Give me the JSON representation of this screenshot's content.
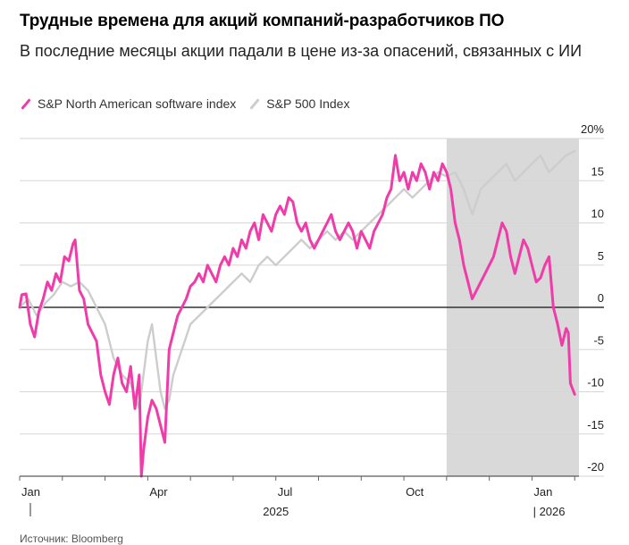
{
  "title": "Трудные времена для акций компаний-разработчиков ПО",
  "subtitle": "В последние месяцы акции падали в цене из-за опасений, связанных с ИИ",
  "source": "Источник: Bloomberg",
  "colors": {
    "software": "#ef3ca9",
    "sp500": "#cdcdcd",
    "shade": "#d9d9d9",
    "grid": "#d6d6d6",
    "zero": "#333333"
  },
  "chart_data": {
    "type": "line",
    "title": "Трудные времена для акций компаний-разработчиков ПО",
    "subtitle": "В последние месяцы акции падали в цене из-за опасений, связанных с ИИ",
    "xlabel": "",
    "ylabel": "%",
    "ylim": [
      -20,
      20
    ],
    "y_ticks": [
      "20%",
      "15",
      "10",
      "5",
      "0",
      "-5",
      "-10",
      "-15",
      "-20"
    ],
    "y_tick_values": [
      20,
      15,
      10,
      5,
      0,
      -5,
      -10,
      -15,
      -20
    ],
    "x_range": [
      0,
      13.1
    ],
    "x_ticks": [
      {
        "label": "Jan",
        "value": 0
      },
      {
        "label": "Apr",
        "value": 3
      },
      {
        "label": "Jul",
        "value": 6
      },
      {
        "label": "Oct",
        "value": 9
      },
      {
        "label": "Jan",
        "value": 12
      }
    ],
    "year_labels": [
      {
        "label": "2025",
        "value": 6
      },
      {
        "label": "| 2026",
        "value": 12.4
      }
    ],
    "shaded_region": {
      "from": 10,
      "to": 13.1
    },
    "legend": [
      "S&P North American software index",
      "S&P 500 Index"
    ],
    "series": [
      {
        "name": "S&P North American software index",
        "points": [
          [
            0,
            0
          ],
          [
            0.05,
            1.5
          ],
          [
            0.15,
            1.6
          ],
          [
            0.25,
            -2
          ],
          [
            0.35,
            -3.5
          ],
          [
            0.45,
            -0.5
          ],
          [
            0.55,
            1
          ],
          [
            0.65,
            3
          ],
          [
            0.75,
            2
          ],
          [
            0.85,
            4
          ],
          [
            0.95,
            3
          ],
          [
            1.05,
            6
          ],
          [
            1.15,
            5.5
          ],
          [
            1.25,
            7.5
          ],
          [
            1.3,
            8
          ],
          [
            1.4,
            2
          ],
          [
            1.5,
            1
          ],
          [
            1.6,
            -2
          ],
          [
            1.7,
            -3
          ],
          [
            1.8,
            -4
          ],
          [
            1.9,
            -8
          ],
          [
            2.0,
            -10
          ],
          [
            2.1,
            -11.5
          ],
          [
            2.2,
            -8
          ],
          [
            2.3,
            -6
          ],
          [
            2.4,
            -9
          ],
          [
            2.5,
            -10
          ],
          [
            2.6,
            -7
          ],
          [
            2.7,
            -12
          ],
          [
            2.8,
            -8
          ],
          [
            2.85,
            -20
          ],
          [
            2.9,
            -17
          ],
          [
            3.0,
            -13
          ],
          [
            3.1,
            -11
          ],
          [
            3.2,
            -12
          ],
          [
            3.3,
            -14
          ],
          [
            3.4,
            -16
          ],
          [
            3.5,
            -5
          ],
          [
            3.6,
            -3
          ],
          [
            3.7,
            -1
          ],
          [
            3.8,
            0
          ],
          [
            3.9,
            1
          ],
          [
            4.0,
            2.5
          ],
          [
            4.1,
            3
          ],
          [
            4.2,
            4
          ],
          [
            4.3,
            3
          ],
          [
            4.4,
            5
          ],
          [
            4.5,
            4
          ],
          [
            4.6,
            3
          ],
          [
            4.7,
            5
          ],
          [
            4.8,
            6
          ],
          [
            4.9,
            5
          ],
          [
            5.0,
            7
          ],
          [
            5.1,
            6
          ],
          [
            5.2,
            8
          ],
          [
            5.3,
            7
          ],
          [
            5.4,
            9
          ],
          [
            5.5,
            10
          ],
          [
            5.6,
            8
          ],
          [
            5.7,
            11
          ],
          [
            5.8,
            10
          ],
          [
            5.9,
            9
          ],
          [
            6.0,
            11
          ],
          [
            6.1,
            12
          ],
          [
            6.2,
            11
          ],
          [
            6.3,
            13
          ],
          [
            6.4,
            12.5
          ],
          [
            6.5,
            10
          ],
          [
            6.6,
            9
          ],
          [
            6.7,
            10
          ],
          [
            6.8,
            8
          ],
          [
            6.9,
            7
          ],
          [
            7.0,
            8
          ],
          [
            7.1,
            9
          ],
          [
            7.2,
            10
          ],
          [
            7.3,
            11
          ],
          [
            7.4,
            9
          ],
          [
            7.5,
            8
          ],
          [
            7.6,
            9
          ],
          [
            7.7,
            10
          ],
          [
            7.8,
            9
          ],
          [
            7.9,
            7
          ],
          [
            8.0,
            9
          ],
          [
            8.1,
            8
          ],
          [
            8.2,
            7
          ],
          [
            8.3,
            9
          ],
          [
            8.4,
            10
          ],
          [
            8.5,
            11
          ],
          [
            8.6,
            13
          ],
          [
            8.7,
            14
          ],
          [
            8.8,
            18
          ],
          [
            8.9,
            15
          ],
          [
            9.0,
            16
          ],
          [
            9.1,
            14
          ],
          [
            9.2,
            16
          ],
          [
            9.3,
            15
          ],
          [
            9.4,
            17
          ],
          [
            9.5,
            16
          ],
          [
            9.6,
            14
          ],
          [
            9.7,
            16
          ],
          [
            9.8,
            15
          ],
          [
            9.9,
            17
          ],
          [
            10.0,
            16
          ],
          [
            10.1,
            14
          ],
          [
            10.2,
            10
          ],
          [
            10.3,
            8
          ],
          [
            10.4,
            5
          ],
          [
            10.5,
            3
          ],
          [
            10.6,
            1
          ],
          [
            10.7,
            2
          ],
          [
            10.8,
            3
          ],
          [
            10.9,
            4
          ],
          [
            11.0,
            5
          ],
          [
            11.1,
            6
          ],
          [
            11.2,
            8
          ],
          [
            11.3,
            10
          ],
          [
            11.4,
            9
          ],
          [
            11.5,
            6
          ],
          [
            11.6,
            4
          ],
          [
            11.7,
            6
          ],
          [
            11.8,
            8
          ],
          [
            11.9,
            7
          ],
          [
            12.0,
            5
          ],
          [
            12.1,
            3
          ],
          [
            12.2,
            3.5
          ],
          [
            12.3,
            5
          ],
          [
            12.4,
            6
          ],
          [
            12.5,
            0
          ],
          [
            12.6,
            -2
          ],
          [
            12.7,
            -4.5
          ],
          [
            12.8,
            -2.5
          ],
          [
            12.85,
            -3
          ],
          [
            12.9,
            -9
          ],
          [
            13.0,
            -10.3
          ]
        ]
      },
      {
        "name": "S&P 500 Index",
        "points": [
          [
            0,
            0
          ],
          [
            0.2,
            1
          ],
          [
            0.4,
            -1
          ],
          [
            0.6,
            0.5
          ],
          [
            0.8,
            1.5
          ],
          [
            1.0,
            3
          ],
          [
            1.2,
            2.5
          ],
          [
            1.4,
            3
          ],
          [
            1.6,
            2
          ],
          [
            1.8,
            0
          ],
          [
            2.0,
            -2
          ],
          [
            2.2,
            -6
          ],
          [
            2.4,
            -8
          ],
          [
            2.6,
            -9
          ],
          [
            2.8,
            -12
          ],
          [
            3.0,
            -4
          ],
          [
            3.1,
            -2
          ],
          [
            3.2,
            -6
          ],
          [
            3.3,
            -10
          ],
          [
            3.4,
            -12
          ],
          [
            3.5,
            -11
          ],
          [
            3.6,
            -8
          ],
          [
            3.8,
            -5
          ],
          [
            4.0,
            -2
          ],
          [
            4.2,
            -1
          ],
          [
            4.4,
            0
          ],
          [
            4.6,
            1
          ],
          [
            4.8,
            2
          ],
          [
            5.0,
            3
          ],
          [
            5.2,
            4
          ],
          [
            5.4,
            3
          ],
          [
            5.6,
            5
          ],
          [
            5.8,
            6
          ],
          [
            6.0,
            5
          ],
          [
            6.2,
            6
          ],
          [
            6.4,
            7
          ],
          [
            6.6,
            8
          ],
          [
            6.8,
            7
          ],
          [
            7.0,
            8
          ],
          [
            7.2,
            9
          ],
          [
            7.4,
            8
          ],
          [
            7.6,
            9
          ],
          [
            7.8,
            8
          ],
          [
            8.0,
            9
          ],
          [
            8.2,
            10
          ],
          [
            8.4,
            11
          ],
          [
            8.6,
            12
          ],
          [
            8.8,
            13
          ],
          [
            9.0,
            14
          ],
          [
            9.2,
            13
          ],
          [
            9.4,
            14
          ],
          [
            9.6,
            15
          ],
          [
            9.8,
            16
          ],
          [
            10.0,
            15.5
          ],
          [
            10.2,
            16
          ],
          [
            10.4,
            14
          ],
          [
            10.6,
            11
          ],
          [
            10.8,
            14
          ],
          [
            11.0,
            15
          ],
          [
            11.2,
            16
          ],
          [
            11.4,
            17
          ],
          [
            11.6,
            15
          ],
          [
            11.8,
            16
          ],
          [
            12.0,
            17
          ],
          [
            12.2,
            18
          ],
          [
            12.4,
            16
          ],
          [
            12.6,
            17
          ],
          [
            12.8,
            18
          ],
          [
            13.0,
            18.5
          ]
        ]
      }
    ]
  }
}
